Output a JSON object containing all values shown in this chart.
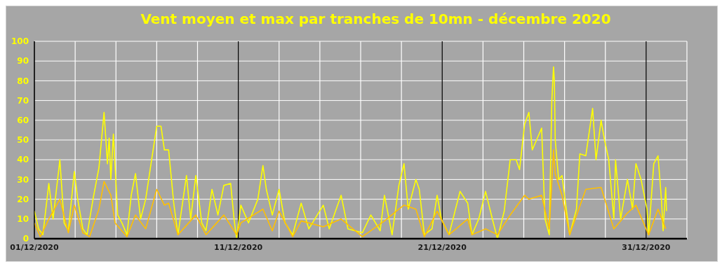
{
  "chart_data": {
    "type": "line",
    "title": "Vent moyen et max par tranches de 10mn - décembre 2020",
    "xlim": [
      "2020-12-01",
      "2021-01-02"
    ],
    "xticks": [
      {
        "value": "2020-12-01",
        "label": "01/12/2020"
      },
      {
        "value": "2020-12-03",
        "label": null
      },
      {
        "value": "2020-12-05",
        "label": null
      },
      {
        "value": "2020-12-07",
        "label": null
      },
      {
        "value": "2020-12-09",
        "label": null
      },
      {
        "value": "2020-12-11",
        "label": "11/12/2020"
      },
      {
        "value": "2020-12-13",
        "label": null
      },
      {
        "value": "2020-12-15",
        "label": null
      },
      {
        "value": "2020-12-17",
        "label": null
      },
      {
        "value": "2020-12-19",
        "label": null
      },
      {
        "value": "2020-12-21",
        "label": "21/12/2020"
      },
      {
        "value": "2020-12-23",
        "label": null
      },
      {
        "value": "2020-12-25",
        "label": null
      },
      {
        "value": "2020-12-27",
        "label": null
      },
      {
        "value": "2020-12-29",
        "label": null
      },
      {
        "value": "2020-12-31",
        "label": "31/12/2020"
      },
      {
        "value": "2021-01-02",
        "label": null
      }
    ],
    "ylim": [
      0,
      100
    ],
    "yticks": [
      0,
      10,
      20,
      30,
      40,
      50,
      60,
      70,
      80,
      90,
      100
    ],
    "grid": true,
    "marker": "none",
    "line_style": "solid",
    "series": [
      {
        "color": "#ffff00",
        "x": [
          "2020-12-01T00:00",
          "2020-12-01T05:00",
          "2020-12-01T10:00",
          "2020-12-01T17:00",
          "2020-12-01T22:00",
          "2020-12-02T06:00",
          "2020-12-02T11:00",
          "2020-12-02T16:00",
          "2020-12-02T23:00",
          "2020-12-03T03:00",
          "2020-12-03T09:00",
          "2020-12-03T14:00",
          "2020-12-03T21:00",
          "2020-12-04T04:00",
          "2020-12-04T10:00",
          "2020-12-04T14:00",
          "2020-12-04T16:00",
          "2020-12-04T18:00",
          "2020-12-04T21:00",
          "2020-12-05T02:00",
          "2020-12-05T07:00",
          "2020-12-05T13:00",
          "2020-12-05T18:00",
          "2020-12-05T23:00",
          "2020-12-06T05:00",
          "2020-12-06T11:00",
          "2020-12-06T18:00",
          "2020-12-07T00:00",
          "2020-12-07T05:00",
          "2020-12-07T09:00",
          "2020-12-07T14:00",
          "2020-12-07T20:00",
          "2020-12-08T01:00",
          "2020-12-08T11:00",
          "2020-12-08T16:00",
          "2020-12-08T22:00",
          "2020-12-09T05:00",
          "2020-12-09T10:00",
          "2020-12-09T17:00",
          "2020-12-10T00:00",
          "2020-12-10T07:00",
          "2020-12-10T15:00",
          "2020-12-10T19:00",
          "2020-12-10T22:00",
          "2020-12-11T03:00",
          "2020-12-11T12:00",
          "2020-12-11T23:00",
          "2020-12-12T05:00",
          "2020-12-12T09:00",
          "2020-12-12T16:00",
          "2020-12-13T00:00",
          "2020-12-13T07:00",
          "2020-12-13T16:00",
          "2020-12-14T02:00",
          "2020-12-14T11:00",
          "2020-12-15T04:00",
          "2020-12-15T11:00",
          "2020-12-16T01:00",
          "2020-12-16T09:00",
          "2020-12-17T02:00",
          "2020-12-17T12:00",
          "2020-12-17T23:00",
          "2020-12-18T04:00",
          "2020-12-18T13:00",
          "2020-12-18T21:00",
          "2020-12-19T03:00",
          "2020-12-19T08:00",
          "2020-12-19T17:00",
          "2020-12-19T21:00",
          "2020-12-20T03:00",
          "2020-12-20T12:00",
          "2020-12-20T18:00",
          "2020-12-20T23:00",
          "2020-12-21T08:00",
          "2020-12-21T21:00",
          "2020-12-22T06:00",
          "2020-12-22T11:00",
          "2020-12-22T19:00",
          "2020-12-23T03:00",
          "2020-12-23T11:00",
          "2020-12-23T17:00",
          "2020-12-24T01:00",
          "2020-12-24T08:00",
          "2020-12-24T15:00",
          "2020-12-24T19:00",
          "2020-12-25T01:00",
          "2020-12-25T06:00",
          "2020-12-25T10:00",
          "2020-12-25T15:00",
          "2020-12-25T21:00",
          "2020-12-26T01:00",
          "2020-12-26T06:00",
          "2020-12-26T09:00",
          "2020-12-26T11:00",
          "2020-12-26T12:00",
          "2020-12-26T13:00",
          "2020-12-26T17:00",
          "2020-12-26T21:00",
          "2020-12-27T02:00",
          "2020-12-27T06:00",
          "2020-12-27T14:00",
          "2020-12-27T18:00",
          "2020-12-28T01:00",
          "2020-12-28T09:00",
          "2020-12-28T13:00",
          "2020-12-28T19:00",
          "2020-12-28T23:00",
          "2020-12-29T04:00",
          "2020-12-29T10:00",
          "2020-12-29T12:00",
          "2020-12-29T18:00",
          "2020-12-30T02:00",
          "2020-12-30T08:00",
          "2020-12-30T12:00",
          "2020-12-30T18:00",
          "2020-12-31T01:00",
          "2020-12-31T03:00",
          "2020-12-31T09:00",
          "2020-12-31T14:00",
          "2020-12-31T18:00",
          "2020-12-31T20:00",
          "2020-12-31T23:00",
          "2021-01-01T00:00"
        ],
        "values": [
          14,
          5,
          2,
          28,
          10,
          40,
          8,
          4,
          34,
          20,
          5,
          2,
          20,
          36,
          64,
          38,
          51,
          30,
          53,
          12,
          8,
          2,
          22,
          33,
          10,
          20,
          40,
          57,
          57,
          45,
          45,
          18,
          2,
          32,
          10,
          32,
          8,
          4,
          25,
          12,
          27,
          28,
          10,
          0,
          17,
          8,
          20,
          37,
          25,
          12,
          25,
          8,
          2,
          18,
          5,
          17,
          5,
          22,
          5,
          3,
          12,
          4,
          22,
          2,
          27,
          38,
          15,
          30,
          25,
          2,
          5,
          22,
          10,
          2,
          24,
          18,
          2,
          10,
          24,
          10,
          0,
          14,
          40,
          40,
          35,
          58,
          64,
          45,
          50,
          56,
          10,
          2,
          70,
          87,
          80,
          50,
          30,
          32,
          15,
          2,
          15,
          43,
          42,
          66,
          40,
          60,
          50,
          40,
          10,
          40,
          10,
          30,
          15,
          38,
          30,
          15,
          2,
          38,
          42,
          20,
          4,
          26,
          14
        ]
      },
      {
        "color": "#ffc000",
        "x": [
          "2020-12-01T00:00",
          "2020-12-01T07:00",
          "2020-12-01T17:00",
          "2020-12-02T06:00",
          "2020-12-02T16:00",
          "2020-12-02T23:00",
          "2020-12-03T09:00",
          "2020-12-03T17:00",
          "2020-12-04T04:00",
          "2020-12-04T10:00",
          "2020-12-04T18:00",
          "2020-12-04T23:00",
          "2020-12-05T13:00",
          "2020-12-05T23:00",
          "2020-12-06T11:00",
          "2020-12-07T00:00",
          "2020-12-07T09:00",
          "2020-12-07T14:00",
          "2020-12-08T01:00",
          "2020-12-08T22:00",
          "2020-12-09T10:00",
          "2020-12-10T07:00",
          "2020-12-10T22:00",
          "2020-12-11T03:00",
          "2020-12-12T05:00",
          "2020-12-12T16:00",
          "2020-12-13T00:00",
          "2020-12-13T16:00",
          "2020-12-14T02:00",
          "2020-12-15T04:00",
          "2020-12-16T01:00",
          "2020-12-17T02:00",
          "2020-12-18T04:00",
          "2020-12-18T21:00",
          "2020-12-19T03:00",
          "2020-12-19T17:00",
          "2020-12-20T03:00",
          "2020-12-20T18:00",
          "2020-12-21T08:00",
          "2020-12-22T06:00",
          "2020-12-22T11:00",
          "2020-12-23T03:00",
          "2020-12-23T17:00",
          "2020-12-24T08:00",
          "2020-12-25T01:00",
          "2020-12-25T06:00",
          "2020-12-25T21:00",
          "2020-12-26T06:00",
          "2020-12-26T11:00",
          "2020-12-26T13:00",
          "2020-12-26T21:00",
          "2020-12-27T06:00",
          "2020-12-28T01:00",
          "2020-12-28T19:00",
          "2020-12-29T10:00",
          "2020-12-30T02:00",
          "2020-12-30T12:00",
          "2020-12-31T03:00",
          "2020-12-31T14:00",
          "2020-12-31T23:00"
        ],
        "values": [
          8,
          1,
          10,
          20,
          3,
          17,
          3,
          1,
          15,
          29,
          22,
          8,
          1,
          12,
          5,
          25,
          17,
          18,
          2,
          12,
          2,
          12,
          2,
          8,
          15,
          4,
          14,
          1,
          9,
          6,
          10,
          1,
          9,
          15,
          17,
          15,
          1,
          14,
          2,
          10,
          2,
          5,
          2,
          12,
          22,
          20,
          22,
          5,
          45,
          33,
          22,
          2,
          25,
          26,
          5,
          13,
          17,
          2,
          15,
          5
        ]
      }
    ]
  }
}
